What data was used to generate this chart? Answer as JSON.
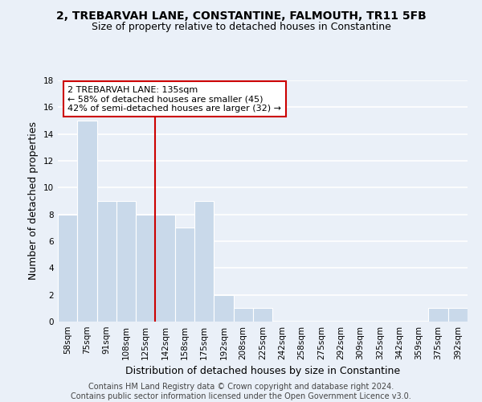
{
  "title1": "2, TREBARVAH LANE, CONSTANTINE, FALMOUTH, TR11 5FB",
  "title2": "Size of property relative to detached houses in Constantine",
  "xlabel": "Distribution of detached houses by size in Constantine",
  "ylabel": "Number of detached properties",
  "bar_labels": [
    "58sqm",
    "75sqm",
    "91sqm",
    "108sqm",
    "125sqm",
    "142sqm",
    "158sqm",
    "175sqm",
    "192sqm",
    "208sqm",
    "225sqm",
    "242sqm",
    "258sqm",
    "275sqm",
    "292sqm",
    "309sqm",
    "325sqm",
    "342sqm",
    "359sqm",
    "375sqm",
    "392sqm"
  ],
  "bar_heights": [
    8,
    15,
    9,
    9,
    8,
    8,
    7,
    9,
    2,
    1,
    1,
    0,
    0,
    0,
    0,
    0,
    0,
    0,
    0,
    1,
    1
  ],
  "bar_color": "#c9d9ea",
  "bar_edge_color": "#ffffff",
  "property_line_x": 4.5,
  "annotation_text": "2 TREBARVAH LANE: 135sqm\n← 58% of detached houses are smaller (45)\n42% of semi-detached houses are larger (32) →",
  "annotation_box_color": "#ffffff",
  "annotation_box_edge": "#cc0000",
  "line_color": "#cc0000",
  "ylim": [
    0,
    18
  ],
  "yticks": [
    0,
    2,
    4,
    6,
    8,
    10,
    12,
    14,
    16,
    18
  ],
  "footer": "Contains HM Land Registry data © Crown copyright and database right 2024.\nContains public sector information licensed under the Open Government Licence v3.0.",
  "bg_color": "#eaf0f8",
  "grid_color": "#ffffff",
  "title_fontsize": 10,
  "subtitle_fontsize": 9,
  "axis_label_fontsize": 9,
  "tick_fontsize": 7.5,
  "footer_fontsize": 7,
  "ann_fontsize": 8
}
